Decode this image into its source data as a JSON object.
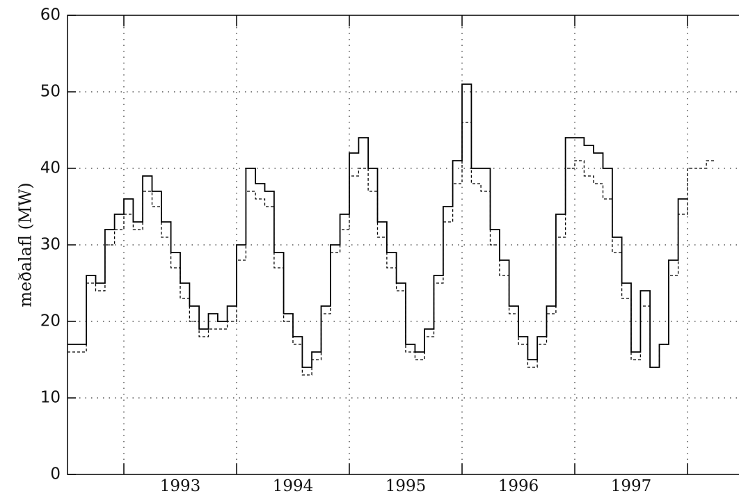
{
  "chart_data": {
    "type": "step-line",
    "y_label": "meðalafl (MW)",
    "x": [
      1992.5,
      1992.583,
      1992.667,
      1992.75,
      1992.833,
      1992.917,
      1993,
      1993.083,
      1993.167,
      1993.25,
      1993.333,
      1993.417,
      1993.5,
      1993.583,
      1993.667,
      1993.75,
      1993.833,
      1993.917,
      1994,
      1994.083,
      1994.167,
      1994.25,
      1994.333,
      1994.417,
      1994.5,
      1994.583,
      1994.667,
      1994.75,
      1994.833,
      1994.917,
      1995,
      1995.083,
      1995.167,
      1995.25,
      1995.333,
      1995.417,
      1995.5,
      1995.583,
      1995.667,
      1995.75,
      1995.833,
      1995.917,
      1996,
      1996.083,
      1996.167,
      1996.25,
      1996.333,
      1996.417,
      1996.5,
      1996.583,
      1996.667,
      1996.75,
      1996.833,
      1996.917,
      1997,
      1997.083,
      1997.167,
      1997.25,
      1997.333,
      1997.417,
      1997.5,
      1997.583,
      1997.667,
      1997.75,
      1997.833,
      1997.917,
      1998,
      1998.083,
      1998.167
    ],
    "series": [
      {
        "color": "#000000",
        "dash": false,
        "values": [
          17,
          17,
          26,
          25,
          32,
          34,
          36,
          33,
          39,
          37,
          33,
          29,
          25,
          22,
          19,
          21,
          20,
          22,
          30,
          40,
          38,
          37,
          29,
          21,
          18,
          14,
          16,
          22,
          30,
          34,
          42,
          44,
          40,
          33,
          29,
          25,
          17,
          16,
          19,
          26,
          35,
          41,
          51,
          40,
          40,
          32,
          28,
          22,
          18,
          15,
          18,
          22,
          34,
          44,
          44,
          43,
          42,
          40,
          31,
          25,
          16,
          24,
          14,
          17,
          28,
          36,
          null,
          null,
          null
        ]
      },
      {
        "color": "#000000",
        "dash": true,
        "values": [
          16,
          16,
          25,
          24,
          30,
          32,
          34,
          32,
          37,
          35,
          31,
          27,
          23,
          20,
          18,
          19,
          19,
          20,
          28,
          37,
          36,
          35,
          27,
          20,
          17,
          13,
          15,
          21,
          29,
          32,
          39,
          40,
          37,
          31,
          27,
          24,
          16,
          15,
          18,
          25,
          33,
          38,
          46,
          38,
          37,
          30,
          26,
          21,
          17,
          14,
          17,
          21,
          31,
          40,
          41,
          39,
          38,
          36,
          29,
          23,
          15,
          22,
          14,
          17,
          26,
          34,
          40,
          40,
          41
        ]
      }
    ],
    "xlim": [
      1992.5,
      1998.5
    ],
    "ylim": [
      0,
      60
    ],
    "yticks": [
      0,
      10,
      20,
      30,
      40,
      50,
      60
    ],
    "xgrid": [
      1993,
      1994,
      1995,
      1996,
      1997,
      1998
    ],
    "xticks": [
      {
        "value": 1993.5,
        "label": "1993"
      },
      {
        "value": 1994.5,
        "label": "1994"
      },
      {
        "value": 1995.5,
        "label": "1995"
      },
      {
        "value": 1996.5,
        "label": "1996"
      },
      {
        "value": 1997.5,
        "label": "1997"
      }
    ],
    "grid": true
  }
}
